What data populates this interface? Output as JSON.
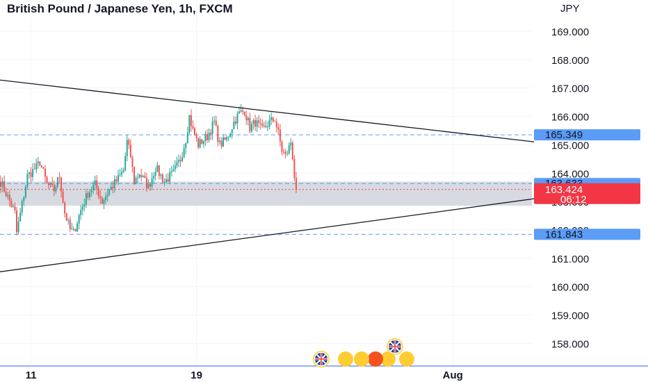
{
  "chart_data": {
    "type": "candlestick",
    "title": "British Pound / Japanese Yen, 1h, FXCM",
    "currency": "JPY",
    "ylim": [
      157.3,
      169.9
    ],
    "y_ticks": [
      "169.000",
      "168.000",
      "167.000",
      "166.000",
      "165.000",
      "164.000",
      "163.000",
      "162.000",
      "161.000",
      "160.000",
      "159.000",
      "158.000"
    ],
    "x_ticks": [
      {
        "label": "11",
        "index": 17
      },
      {
        "label": "19",
        "index": 110
      },
      {
        "label": "Aug",
        "index": 254
      }
    ],
    "candles": {
      "count": 167,
      "first_close": 163.7,
      "anchors": [
        [
          0,
          163.7
        ],
        [
          8,
          162.6
        ],
        [
          9,
          161.9
        ],
        [
          15,
          163.9
        ],
        [
          20,
          164.2
        ],
        [
          22,
          164.4
        ],
        [
          26,
          163.6
        ],
        [
          30,
          163.4
        ],
        [
          33,
          163.9
        ],
        [
          36,
          162.6
        ],
        [
          39,
          162.0
        ],
        [
          41,
          161.9
        ],
        [
          45,
          162.7
        ],
        [
          49,
          163.3
        ],
        [
          53,
          163.6
        ],
        [
          57,
          163.0
        ],
        [
          61,
          163.4
        ],
        [
          66,
          163.8
        ],
        [
          69,
          164.1
        ],
        [
          71,
          165.1
        ],
        [
          73,
          164.6
        ],
        [
          75,
          163.7
        ],
        [
          78,
          164.0
        ],
        [
          83,
          163.5
        ],
        [
          87,
          164.2
        ],
        [
          92,
          163.7
        ],
        [
          97,
          164.0
        ],
        [
          101,
          164.5
        ],
        [
          104,
          165.2
        ],
        [
          106,
          166.0
        ],
        [
          108,
          165.5
        ],
        [
          111,
          165.0
        ],
        [
          116,
          165.3
        ],
        [
          120,
          165.8
        ],
        [
          123,
          165.0
        ],
        [
          127,
          165.2
        ],
        [
          131,
          165.8
        ],
        [
          134,
          166.1
        ],
        [
          137,
          166.2
        ],
        [
          140,
          165.6
        ],
        [
          143,
          165.8
        ],
        [
          147,
          165.5
        ],
        [
          151,
          165.8
        ],
        [
          154,
          165.9
        ],
        [
          156,
          165.4
        ],
        [
          158,
          164.8
        ],
        [
          160,
          164.6
        ],
        [
          162,
          164.9
        ],
        [
          163,
          165.1
        ],
        [
          164,
          164.6
        ],
        [
          165,
          163.9
        ],
        [
          166,
          163.42
        ]
      ],
      "up_color": "#26a69a",
      "down_color": "#ef5350"
    },
    "trendlines": [
      {
        "points": [
          [
            -3,
            167.3
          ],
          [
            300,
            165.1
          ]
        ],
        "color": "#131722"
      },
      {
        "points": [
          [
            -3,
            160.5
          ],
          [
            300,
            163.1
          ]
        ],
        "color": "#131722"
      }
    ],
    "zone": {
      "from": 162.85,
      "to": 163.7,
      "color": "#d1d4dc"
    },
    "h_lines": [
      {
        "value": 165.349,
        "label": "165.349",
        "style": "dashed",
        "color": "#5b9cf6"
      },
      {
        "value": 163.633,
        "label": "163.633",
        "style": "dashed",
        "color": "#5b9cf6"
      },
      {
        "value": 161.843,
        "label": "161.843",
        "style": "dashed",
        "color": "#5b9cf6"
      }
    ],
    "last_price": {
      "value": 163.424,
      "label": "163.424",
      "countdown": "06:12",
      "color": "#f23645"
    },
    "events": [
      {
        "icon": "uk-flag",
        "count": 3
      },
      {
        "icon": "uk-flag",
        "count": 1
      }
    ]
  }
}
